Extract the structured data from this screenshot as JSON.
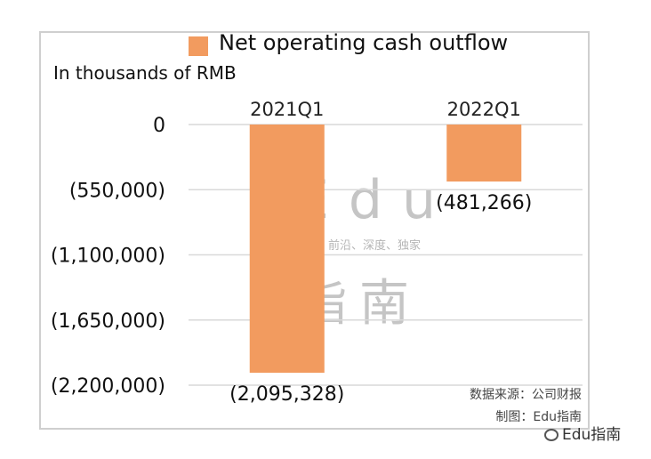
{
  "chart_data": {
    "type": "bar",
    "categories": [
      "2021Q1",
      "2022Q1"
    ],
    "series": [
      {
        "name": "Net operating cash outflow",
        "values": [
          -2095328,
          -481266
        ]
      }
    ],
    "data_labels": [
      "(2,095,328)",
      "(481,266)"
    ],
    "ylabel": "In thousands of RMB",
    "ylim": [
      -2200000,
      0
    ],
    "yticks": [
      0,
      -550000,
      -1100000,
      -1650000,
      -2200000
    ],
    "ytick_labels": [
      "0",
      "(550,000)",
      "(1,100,000)",
      "(1,650,000)",
      "(2,200,000)"
    ],
    "grid": true,
    "legend_position": "top",
    "bar_color": "#F29B5F",
    "grid_color": "#d9d9d9"
  },
  "source_text": "数据来源：公司财报",
  "maker_text": "制图：Edu指南",
  "watermark": {
    "big": "Edu",
    "sub": "教育行业，前沿、深度、独家",
    "cn": "指南"
  },
  "brand_text": "Edu指南",
  "brand_icon": "wechat-icon"
}
